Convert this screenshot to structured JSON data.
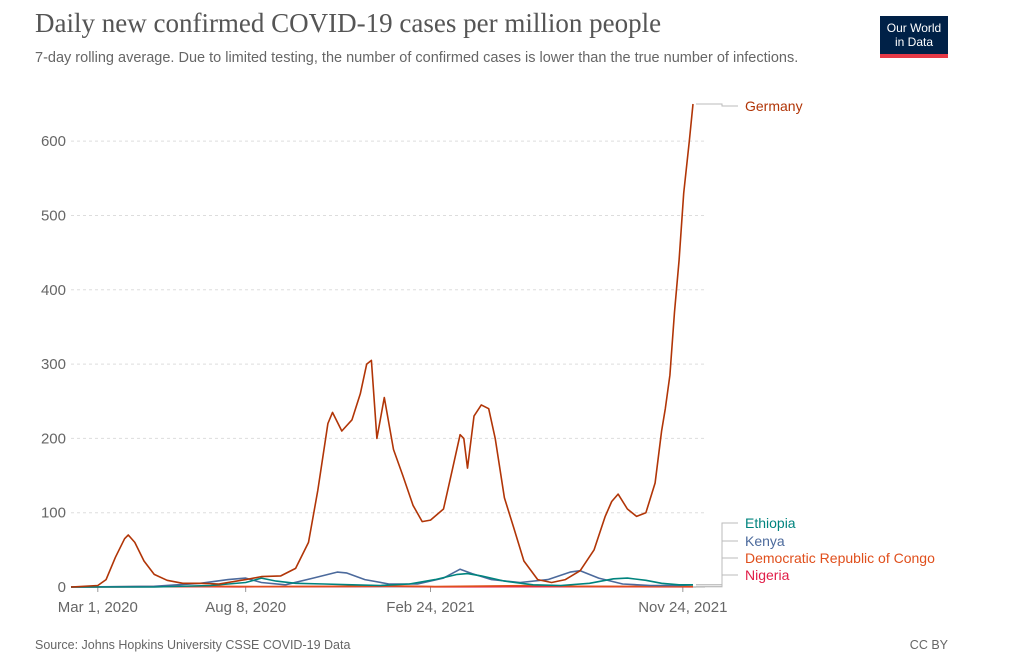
{
  "chart_data": {
    "type": "line",
    "title": "Daily new confirmed COVID-19 cases per million people",
    "subtitle": "7-day rolling average. Due to limited testing, the number of confirmed cases is lower than the true number of infections.",
    "x_tick_labels": [
      "Mar 1, 2020",
      "Aug 8, 2020",
      "Feb 24, 2021",
      "Nov 24, 2021"
    ],
    "x_range": [
      "2020-02-01",
      "2021-12-18"
    ],
    "ylim": [
      0,
      650
    ],
    "yticks": [
      0,
      100,
      200,
      300,
      400,
      500,
      600
    ],
    "grid": "horizontal dashed",
    "legend": "labels at line ends (right)",
    "series": [
      {
        "name": "Germany",
        "color": "#b13507",
        "points": [
          [
            "2020-02-01",
            0
          ],
          [
            "2020-03-01",
            2
          ],
          [
            "2020-03-10",
            10
          ],
          [
            "2020-03-20",
            40
          ],
          [
            "2020-03-30",
            65
          ],
          [
            "2020-04-03",
            70
          ],
          [
            "2020-04-10",
            60
          ],
          [
            "2020-04-20",
            35
          ],
          [
            "2020-05-01",
            17
          ],
          [
            "2020-05-15",
            9
          ],
          [
            "2020-06-01",
            5
          ],
          [
            "2020-06-20",
            5
          ],
          [
            "2020-07-10",
            4
          ],
          [
            "2020-08-08",
            10
          ],
          [
            "2020-08-25",
            14
          ],
          [
            "2020-09-15",
            15
          ],
          [
            "2020-10-01",
            25
          ],
          [
            "2020-10-15",
            60
          ],
          [
            "2020-10-25",
            130
          ],
          [
            "2020-11-05",
            220
          ],
          [
            "2020-11-10",
            235
          ],
          [
            "2020-11-20",
            210
          ],
          [
            "2020-12-01",
            225
          ],
          [
            "2020-12-10",
            260
          ],
          [
            "2020-12-17",
            300
          ],
          [
            "2020-12-22",
            305
          ],
          [
            "2020-12-28",
            200
          ],
          [
            "2021-01-05",
            255
          ],
          [
            "2021-01-15",
            185
          ],
          [
            "2021-01-25",
            150
          ],
          [
            "2021-02-05",
            110
          ],
          [
            "2021-02-15",
            88
          ],
          [
            "2021-02-24",
            90
          ],
          [
            "2021-03-10",
            105
          ],
          [
            "2021-03-20",
            160
          ],
          [
            "2021-03-28",
            205
          ],
          [
            "2021-04-01",
            200
          ],
          [
            "2021-04-05",
            160
          ],
          [
            "2021-04-12",
            230
          ],
          [
            "2021-04-20",
            245
          ],
          [
            "2021-04-28",
            240
          ],
          [
            "2021-05-05",
            200
          ],
          [
            "2021-05-15",
            120
          ],
          [
            "2021-05-25",
            80
          ],
          [
            "2021-06-05",
            35
          ],
          [
            "2021-06-20",
            10
          ],
          [
            "2021-07-05",
            6
          ],
          [
            "2021-07-20",
            10
          ],
          [
            "2021-08-05",
            22
          ],
          [
            "2021-08-20",
            50
          ],
          [
            "2021-09-01",
            95
          ],
          [
            "2021-09-08",
            115
          ],
          [
            "2021-09-15",
            125
          ],
          [
            "2021-09-25",
            105
          ],
          [
            "2021-10-05",
            95
          ],
          [
            "2021-10-15",
            100
          ],
          [
            "2021-10-25",
            140
          ],
          [
            "2021-11-01",
            210
          ],
          [
            "2021-11-05",
            240
          ],
          [
            "2021-11-10",
            285
          ],
          [
            "2021-11-15",
            370
          ],
          [
            "2021-11-20",
            440
          ],
          [
            "2021-11-25",
            530
          ],
          [
            "2021-12-01",
            600
          ],
          [
            "2021-12-05",
            650
          ]
        ]
      },
      {
        "name": "Ethiopia",
        "color": "#00847e",
        "points": [
          [
            "2020-02-01",
            0
          ],
          [
            "2020-05-01",
            0
          ],
          [
            "2020-07-01",
            2
          ],
          [
            "2020-08-08",
            6
          ],
          [
            "2020-08-25",
            12
          ],
          [
            "2020-09-10",
            8
          ],
          [
            "2020-10-01",
            5
          ],
          [
            "2020-11-01",
            4
          ],
          [
            "2020-12-01",
            3
          ],
          [
            "2021-01-01",
            2
          ],
          [
            "2021-02-01",
            4
          ],
          [
            "2021-03-01",
            10
          ],
          [
            "2021-03-25",
            17
          ],
          [
            "2021-04-05",
            18
          ],
          [
            "2021-04-20",
            15
          ],
          [
            "2021-05-15",
            8
          ],
          [
            "2021-06-15",
            3
          ],
          [
            "2021-07-15",
            2
          ],
          [
            "2021-08-15",
            5
          ],
          [
            "2021-09-10",
            11
          ],
          [
            "2021-09-25",
            12
          ],
          [
            "2021-10-15",
            9
          ],
          [
            "2021-11-01",
            5
          ],
          [
            "2021-11-20",
            3
          ],
          [
            "2021-12-05",
            3
          ]
        ]
      },
      {
        "name": "Kenya",
        "color": "#4c6a9c",
        "points": [
          [
            "2020-02-01",
            0
          ],
          [
            "2020-05-01",
            1
          ],
          [
            "2020-06-20",
            5
          ],
          [
            "2020-07-20",
            10
          ],
          [
            "2020-08-08",
            12
          ],
          [
            "2020-08-25",
            6
          ],
          [
            "2020-09-20",
            3
          ],
          [
            "2020-10-20",
            12
          ],
          [
            "2020-11-15",
            20
          ],
          [
            "2020-11-25",
            19
          ],
          [
            "2020-12-15",
            10
          ],
          [
            "2021-01-10",
            4
          ],
          [
            "2021-02-10",
            4
          ],
          [
            "2021-03-10",
            12
          ],
          [
            "2021-03-28",
            24
          ],
          [
            "2021-04-10",
            18
          ],
          [
            "2021-05-01",
            10
          ],
          [
            "2021-06-01",
            6
          ],
          [
            "2021-07-01",
            10
          ],
          [
            "2021-07-25",
            20
          ],
          [
            "2021-08-05",
            22
          ],
          [
            "2021-08-25",
            12
          ],
          [
            "2021-09-20",
            4
          ],
          [
            "2021-10-20",
            2
          ],
          [
            "2021-11-20",
            2
          ],
          [
            "2021-12-05",
            3
          ]
        ]
      },
      {
        "name": "Democratic Republic of Congo",
        "color": "#e04f1c",
        "points": [
          [
            "2020-02-01",
            0
          ],
          [
            "2020-05-01",
            0.5
          ],
          [
            "2020-07-01",
            1
          ],
          [
            "2020-09-01",
            0.5
          ],
          [
            "2020-12-01",
            1
          ],
          [
            "2021-01-15",
            1.5
          ],
          [
            "2021-03-01",
            0.5
          ],
          [
            "2021-06-20",
            2
          ],
          [
            "2021-08-01",
            1
          ],
          [
            "2021-12-05",
            0.5
          ]
        ]
      },
      {
        "name": "Nigeria",
        "color": "#e11d48",
        "points": [
          [
            "2020-02-01",
            0
          ],
          [
            "2020-06-20",
            0.5
          ],
          [
            "2020-08-01",
            0.3
          ],
          [
            "2020-12-15",
            0.8
          ],
          [
            "2021-01-20",
            1
          ],
          [
            "2021-03-01",
            0.3
          ],
          [
            "2021-08-10",
            0.5
          ],
          [
            "2021-12-05",
            0.3
          ]
        ]
      }
    ]
  },
  "logo": {
    "line1": "Our World",
    "line2": "in Data"
  },
  "footer": {
    "source": "Source: Johns Hopkins University CSSE COVID-19 Data",
    "license": "CC BY"
  }
}
